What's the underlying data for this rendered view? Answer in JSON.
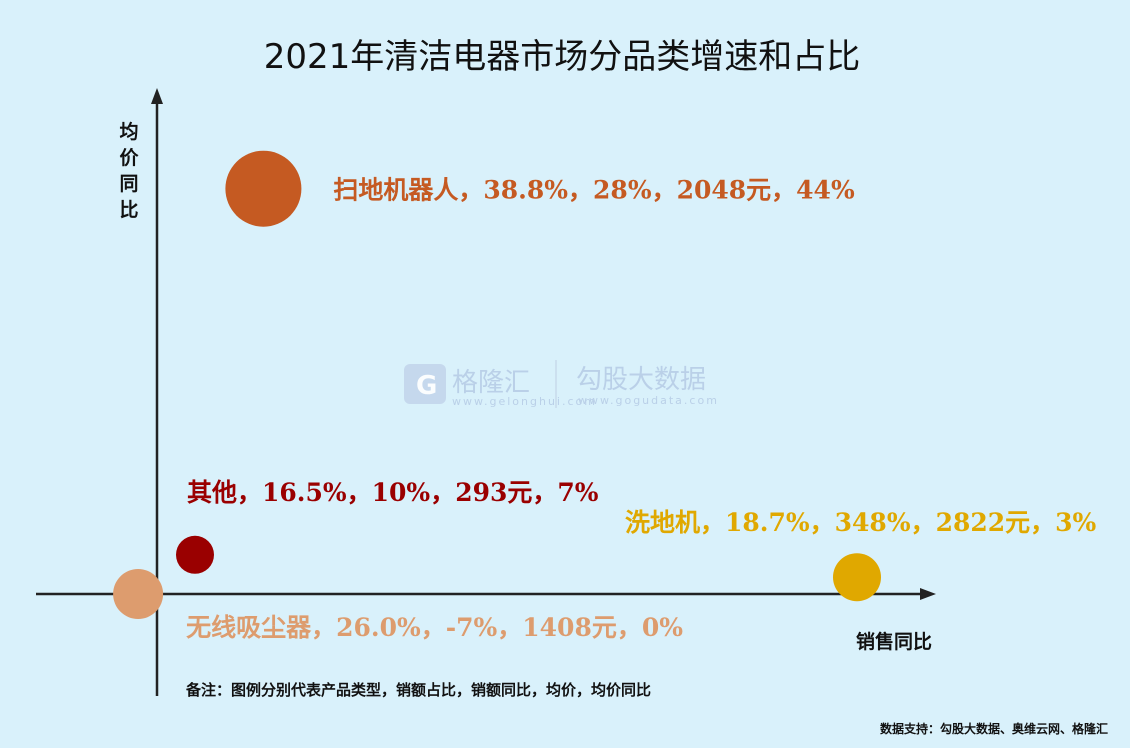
{
  "chart_data": {
    "type": "scatter",
    "title": "2021年清洁电器市场分品类增速和占比",
    "xlabel": "销售同比",
    "ylabel": "均价同比",
    "note": "备注：图例分别代表产品类型，销额占比，销额同比，均价，均价同比",
    "source": "数据支持：勾股大数据、奥维云网、格隆汇",
    "points": [
      {
        "label": "扫地机器人，38.8%，28%，2048元，44%",
        "color": "#c55a22",
        "x": 28,
        "y": 44,
        "share": 38.8
      },
      {
        "label": "其他，16.5%，10%，293元，7%",
        "color": "#9a0000",
        "x": 10,
        "y": 7,
        "share": 16.5
      },
      {
        "label": "洗地机，18.7%，348%，2822元，3%",
        "color": "#e0a800",
        "x": 348,
        "y": 3,
        "share": 18.7
      },
      {
        "label": "无线吸尘器，26.0%，-7%，1408元，0%",
        "color": "#dd9c6e",
        "x": -7,
        "y": 0,
        "share": 26.0
      }
    ]
  },
  "watermark": {
    "brand1": "格隆汇",
    "brand1_url": "www.gelonghui.com",
    "brand2": "勾股大数据",
    "brand2_url": "www.gogudata.com"
  }
}
